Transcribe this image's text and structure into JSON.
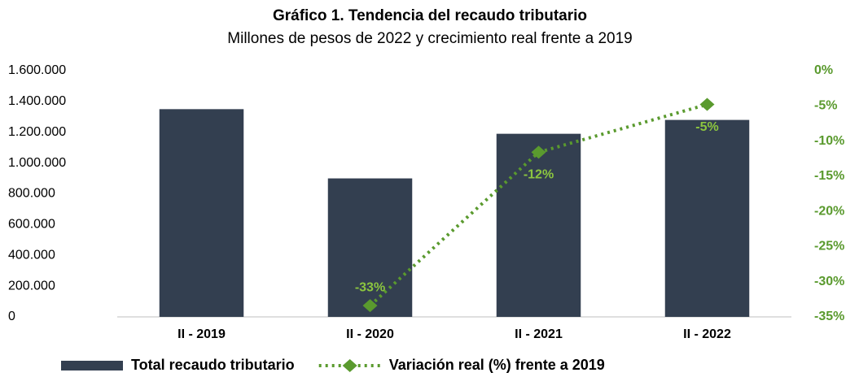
{
  "chart_data": {
    "type": "bar_line",
    "title": "Gráfico 1. Tendencia del recaudo tributario",
    "subtitle": "Millones de pesos de 2022 y crecimiento real frente a 2019",
    "categories": [
      "II - 2019",
      "II - 2020",
      "II - 2021",
      "II - 2022"
    ],
    "series": [
      {
        "name": "Total recaudo tributario",
        "color": "#333f50",
        "type": "bar",
        "values": [
          1350000,
          900000,
          1190000,
          1280000
        ]
      },
      {
        "name": "Variación real (%) frente a 2019",
        "color": "#5a9a2e",
        "type": "line",
        "axis": "y2",
        "values": [
          null,
          -33.4,
          -11.6,
          -4.8
        ],
        "value_labels": [
          null,
          "-33%",
          "-12%",
          "-5%"
        ],
        "label_color": "#8cc63f"
      }
    ],
    "ylim": [
      0,
      1600000
    ],
    "yticks": [
      0,
      {
        "value": 200000,
        "label": "200.000"
      },
      {
        "value": 400000,
        "label": "400.000"
      },
      {
        "value": 600000,
        "label": "600.000"
      },
      {
        "value": 800000,
        "label": "800.000"
      },
      {
        "value": 1000000,
        "label": "1.000.000"
      },
      {
        "value": 1200000,
        "label": "1.200.000"
      },
      {
        "value": 1400000,
        "label": "1.400.000"
      },
      {
        "value": 1600000,
        "label": "1.600.000"
      }
    ],
    "y2lim": [
      -35,
      0
    ],
    "y2ticks": [
      {
        "value": 0,
        "label": "0%"
      },
      {
        "value": -5,
        "label": "-5%"
      },
      {
        "value": -10,
        "label": "-10%"
      },
      {
        "value": -15,
        "label": "-15%"
      },
      {
        "value": -20,
        "label": "-20%"
      },
      {
        "value": -25,
        "label": "-25%"
      },
      {
        "value": -30,
        "label": "-30%"
      },
      {
        "value": -35,
        "label": "-35%"
      }
    ],
    "y2_color": "#5a9a2e",
    "grid": false
  }
}
